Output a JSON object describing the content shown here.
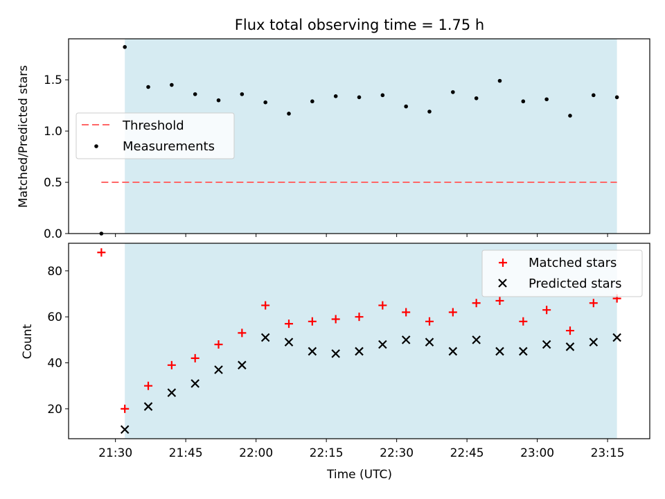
{
  "chart_data": {
    "type": "scatter",
    "title": "Flux total observing time = 1.75 h",
    "xlabel": "Time (UTC)",
    "x_range": [
      "21:20",
      "23:24"
    ],
    "x_ticks": [
      "21:30",
      "21:45",
      "22:00",
      "22:15",
      "22:30",
      "22:45",
      "23:00",
      "23:15"
    ],
    "times": [
      "21:27",
      "21:32",
      "21:37",
      "21:42",
      "21:47",
      "21:52",
      "21:57",
      "22:02",
      "22:07",
      "22:12",
      "22:17",
      "22:22",
      "22:27",
      "22:32",
      "22:37",
      "22:42",
      "22:47",
      "22:52",
      "22:57",
      "23:02",
      "23:07",
      "23:12",
      "23:17"
    ],
    "observing_window": {
      "start": "21:32",
      "end": "23:17",
      "color": "#add8e6"
    },
    "grid": false,
    "top_panel": {
      "ylabel": "Matched/Predicted stars",
      "ylim": [
        0,
        1.9
      ],
      "y_ticks": [
        "0.0",
        "0.5",
        "1.0",
        "1.5"
      ],
      "legend_position": "center-left",
      "threshold": {
        "name": "Threshold",
        "value": 0.5,
        "color": "#ff6666",
        "style": "dashed",
        "x_start": "21:27",
        "x_end": "23:17"
      },
      "measurements": {
        "name": "Measurements",
        "color": "#000000",
        "values": [
          0.0,
          1.82,
          1.43,
          1.45,
          1.36,
          1.3,
          1.36,
          1.28,
          1.17,
          1.29,
          1.34,
          1.33,
          1.35,
          1.24,
          1.19,
          1.38,
          1.32,
          1.49,
          1.29,
          1.31,
          1.15,
          1.35,
          1.33
        ]
      }
    },
    "bottom_panel": {
      "ylabel": "Count",
      "ylim": [
        7,
        92
      ],
      "y_ticks": [
        "20",
        "40",
        "60",
        "80"
      ],
      "legend_position": "upper-right",
      "series": [
        {
          "name": "Matched stars",
          "marker": "plus",
          "color": "#ff0000",
          "values": [
            88,
            20,
            30,
            39,
            42,
            48,
            53,
            65,
            57,
            58,
            59,
            60,
            65,
            62,
            58,
            62,
            66,
            67,
            58,
            63,
            54,
            66,
            68
          ]
        },
        {
          "name": "Predicted stars",
          "marker": "x",
          "color": "#000000",
          "values": [
            null,
            11,
            21,
            27,
            31,
            37,
            39,
            51,
            49,
            45,
            44,
            45,
            48,
            50,
            49,
            45,
            50,
            45,
            45,
            48,
            47,
            49,
            51
          ]
        }
      ]
    }
  }
}
